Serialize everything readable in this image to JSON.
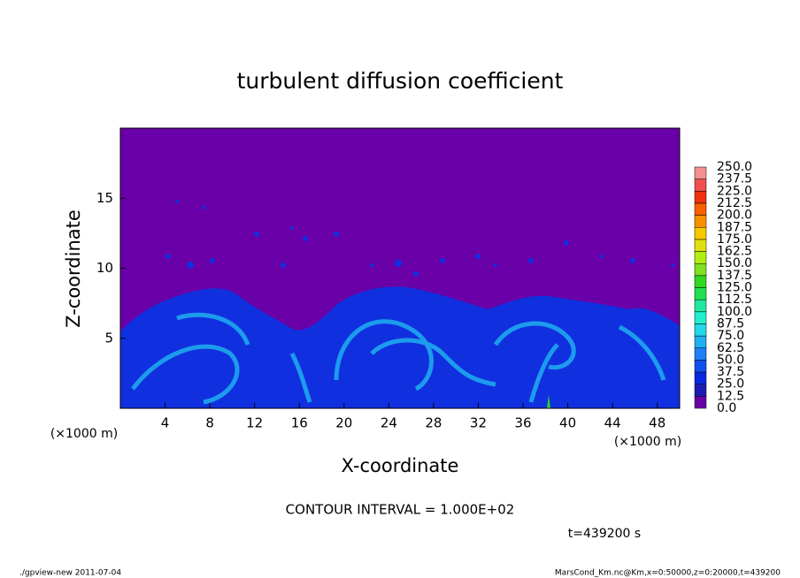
{
  "chart_data": {
    "type": "heatmap",
    "title": "turbulent diffusion coefficient",
    "x_label": "X-coordinate",
    "y_label": "Z-coordinate",
    "x_unit": "(×1000 m)",
    "y_unit": "(×1000 m)",
    "xlim": [
      0,
      50
    ],
    "xticks": [
      4,
      8,
      12,
      16,
      20,
      24,
      28,
      32,
      36,
      40,
      44,
      48
    ],
    "ylim": [
      0,
      20
    ],
    "yticks": [
      5,
      10,
      15
    ],
    "colorbar": {
      "levels": [
        {
          "value": 0,
          "label": "0.0"
        },
        12.5,
        {
          "value": 25,
          "label": "25.0"
        },
        37.5,
        {
          "value": 50,
          "label": "50.0"
        },
        62.5,
        {
          "value": 75,
          "label": "75.0"
        },
        87.5,
        {
          "value": 100,
          "label": "100.0"
        },
        112.5,
        {
          "value": 125,
          "label": "125.0"
        },
        137.5,
        {
          "value": 150,
          "label": "150.0"
        },
        162.5,
        {
          "value": 175,
          "label": "175.0"
        },
        187.5,
        {
          "value": 200,
          "label": "200.0"
        },
        212.5,
        {
          "value": 225,
          "label": "225.0"
        },
        237.5,
        {
          "value": 250,
          "label": "250.0"
        }
      ],
      "colors": [
        "#6a00a8",
        "#1c1cb4",
        "#0a28e0",
        "#1050f0",
        "#2080f8",
        "#20b0f0",
        "#20d8e8",
        "#20f0d0",
        "#20e8a0",
        "#20e050",
        "#30d820",
        "#80e020",
        "#b0f010",
        "#e0e010",
        "#f8c800",
        "#f89000",
        "#f86000",
        "#f03010",
        "#f05050",
        "#f49090"
      ]
    },
    "contour_note": "CONTOUR INTERVAL = 1.000E+02",
    "time_note": "t=439200 s",
    "footer_left": "./gpview-new  2011-07-04",
    "footer_right": "MarsCond_Km.nc@Km,x=0:50000,z=0:20000,t=439200"
  }
}
